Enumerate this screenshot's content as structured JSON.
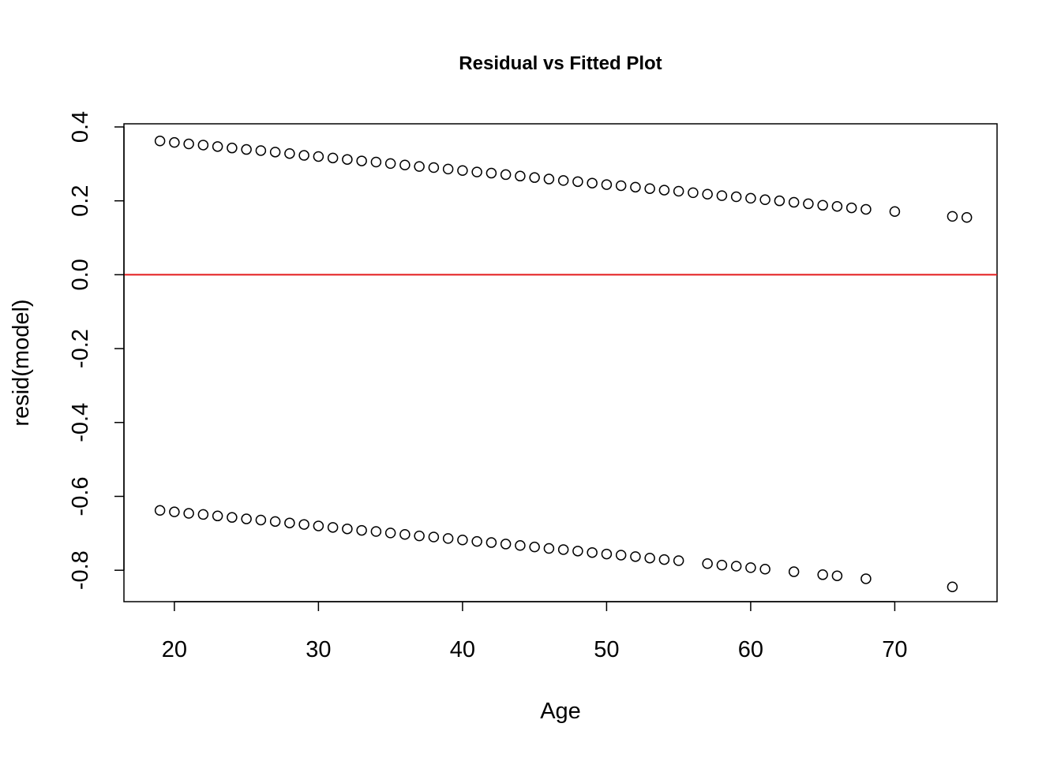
{
  "chart_data": {
    "type": "scatter",
    "title": "Residual vs Fitted Plot",
    "xlabel": "Age",
    "ylabel": "resid(model)",
    "xlim": [
      16.5,
      77.1
    ],
    "ylim": [
      -0.885,
      0.4085
    ],
    "xticks": [
      20,
      30,
      40,
      50,
      60,
      70
    ],
    "yticks": [
      -0.8,
      -0.6,
      -0.4,
      -0.2,
      0.0,
      0.2,
      0.4
    ],
    "yticklabels": [
      "-0.8",
      "-0.6",
      "-0.4",
      "-0.2",
      "0.0",
      "0.2",
      "0.4"
    ],
    "reference_line": {
      "y": 0,
      "color": "#e31a1c"
    },
    "grid": false,
    "series": [
      {
        "points": [
          [
            19,
            0.362
          ],
          [
            20,
            0.358
          ],
          [
            21,
            0.354
          ],
          [
            22,
            0.351
          ],
          [
            23,
            0.347
          ],
          [
            24,
            0.343
          ],
          [
            25,
            0.339
          ],
          [
            26,
            0.336
          ],
          [
            27,
            0.332
          ],
          [
            28,
            0.328
          ],
          [
            29,
            0.323
          ],
          [
            30,
            0.32
          ],
          [
            31,
            0.316
          ],
          [
            32,
            0.312
          ],
          [
            33,
            0.308
          ],
          [
            34,
            0.305
          ],
          [
            35,
            0.301
          ],
          [
            36,
            0.297
          ],
          [
            37,
            0.293
          ],
          [
            38,
            0.29
          ],
          [
            39,
            0.286
          ],
          [
            40,
            0.282
          ],
          [
            41,
            0.278
          ],
          [
            42,
            0.275
          ],
          [
            43,
            0.271
          ],
          [
            44,
            0.267
          ],
          [
            45,
            0.263
          ],
          [
            46,
            0.259
          ],
          [
            47,
            0.255
          ],
          [
            48,
            0.252
          ],
          [
            49,
            0.248
          ],
          [
            50,
            0.244
          ],
          [
            51,
            0.241
          ],
          [
            52,
            0.237
          ],
          [
            53,
            0.233
          ],
          [
            54,
            0.229
          ],
          [
            55,
            0.226
          ],
          [
            56,
            0.222
          ],
          [
            57,
            0.218
          ],
          [
            58,
            0.214
          ],
          [
            59,
            0.211
          ],
          [
            60,
            0.207
          ],
          [
            61,
            0.203
          ],
          [
            62,
            0.2
          ],
          [
            63,
            0.196
          ],
          [
            64,
            0.192
          ],
          [
            65,
            0.188
          ],
          [
            66,
            0.185
          ],
          [
            67,
            0.181
          ],
          [
            68,
            0.177
          ],
          [
            70,
            0.171
          ],
          [
            74,
            0.158
          ],
          [
            75,
            0.155
          ],
          [
            19,
            -0.638
          ],
          [
            20,
            -0.642
          ],
          [
            21,
            -0.646
          ],
          [
            22,
            -0.649
          ],
          [
            23,
            -0.653
          ],
          [
            24,
            -0.657
          ],
          [
            25,
            -0.661
          ],
          [
            26,
            -0.664
          ],
          [
            27,
            -0.668
          ],
          [
            28,
            -0.672
          ],
          [
            29,
            -0.676
          ],
          [
            30,
            -0.68
          ],
          [
            31,
            -0.684
          ],
          [
            32,
            -0.688
          ],
          [
            33,
            -0.692
          ],
          [
            34,
            -0.695
          ],
          [
            35,
            -0.699
          ],
          [
            36,
            -0.703
          ],
          [
            37,
            -0.707
          ],
          [
            38,
            -0.71
          ],
          [
            39,
            -0.714
          ],
          [
            40,
            -0.718
          ],
          [
            41,
            -0.722
          ],
          [
            42,
            -0.725
          ],
          [
            43,
            -0.729
          ],
          [
            44,
            -0.733
          ],
          [
            45,
            -0.737
          ],
          [
            46,
            -0.741
          ],
          [
            47,
            -0.744
          ],
          [
            48,
            -0.748
          ],
          [
            49,
            -0.752
          ],
          [
            50,
            -0.756
          ],
          [
            51,
            -0.759
          ],
          [
            52,
            -0.763
          ],
          [
            53,
            -0.767
          ],
          [
            54,
            -0.771
          ],
          [
            55,
            -0.774
          ],
          [
            57,
            -0.782
          ],
          [
            58,
            -0.786
          ],
          [
            59,
            -0.789
          ],
          [
            60,
            -0.793
          ],
          [
            61,
            -0.797
          ],
          [
            63,
            -0.804
          ],
          [
            65,
            -0.812
          ],
          [
            66,
            -0.815
          ],
          [
            68,
            -0.823
          ],
          [
            74,
            -0.845
          ]
        ]
      }
    ]
  }
}
